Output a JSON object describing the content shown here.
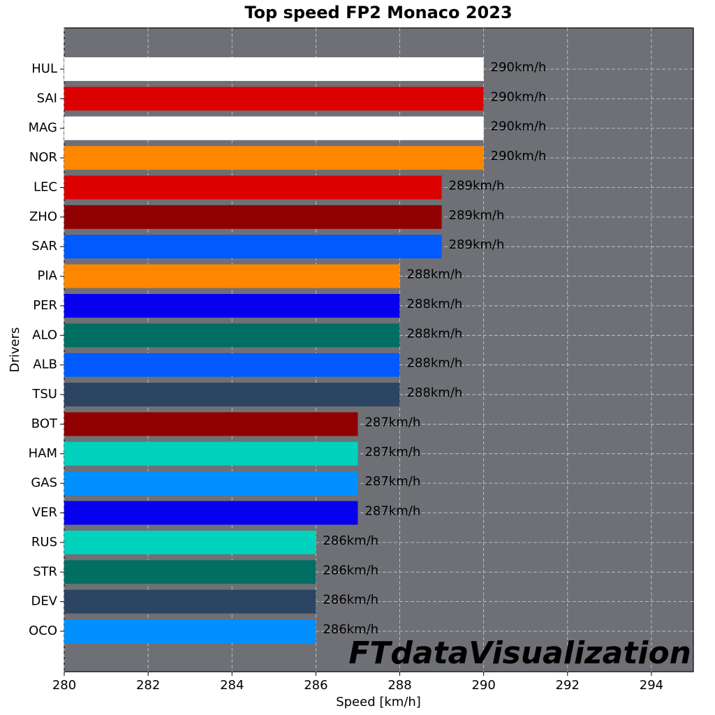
{
  "chart_data": {
    "type": "barh",
    "title": "Top speed FP2 Monaco 2023",
    "xlabel": "Speed [km/h]",
    "ylabel": "Drivers",
    "watermark": "FTdataVisualization",
    "categories": [
      "HUL",
      "SAI",
      "MAG",
      "NOR",
      "LEC",
      "ZHO",
      "SAR",
      "PIA",
      "PER",
      "ALO",
      "ALB",
      "TSU",
      "BOT",
      "HAM",
      "GAS",
      "VER",
      "RUS",
      "STR",
      "DEV",
      "OCO"
    ],
    "values": [
      290,
      290,
      290,
      290,
      289,
      289,
      289,
      288,
      288,
      288,
      288,
      288,
      287,
      287,
      287,
      287,
      286,
      286,
      286,
      286
    ],
    "value_labels": [
      "290km/h",
      "290km/h",
      "290km/h",
      "290km/h",
      "289km/h",
      "289km/h",
      "289km/h",
      "288km/h",
      "288km/h",
      "288km/h",
      "288km/h",
      "288km/h",
      "287km/h",
      "287km/h",
      "287km/h",
      "287km/h",
      "286km/h",
      "286km/h",
      "286km/h",
      "286km/h"
    ],
    "colors": [
      "#ffffff",
      "#dc0000",
      "#ffffff",
      "#ff8700",
      "#dc0000",
      "#900000",
      "#005aff",
      "#ff8700",
      "#0600ef",
      "#006f62",
      "#005aff",
      "#2b4562",
      "#900000",
      "#00d2be",
      "#0090ff",
      "#0600ef",
      "#00d2be",
      "#006f62",
      "#2b4562",
      "#0090ff"
    ],
    "xlim": [
      280,
      295
    ],
    "xticks": [
      280,
      282,
      284,
      286,
      288,
      290,
      292,
      294
    ],
    "grid": true,
    "background": "#6e7076"
  }
}
